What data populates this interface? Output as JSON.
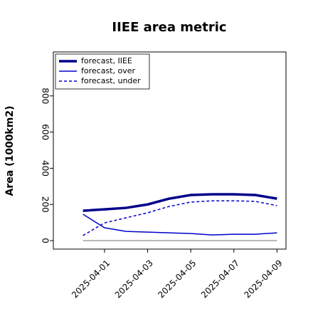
{
  "chart_data": {
    "type": "line",
    "title": "IIEE area metric",
    "y_label": "Area (1000km2)",
    "x": [
      "2025-03-31",
      "2025-04-01",
      "2025-04-02",
      "2025-04-03",
      "2025-04-04",
      "2025-04-05",
      "2025-04-06",
      "2025-04-07",
      "2025-04-08",
      "2025-04-09"
    ],
    "series": [
      {
        "name": "forecast, IIEE",
        "color": "#00008b",
        "style": "solid",
        "width": 3.5,
        "values": [
          165,
          173,
          181,
          200,
          232,
          252,
          256,
          256,
          252,
          232
        ]
      },
      {
        "name": "forecast, over",
        "color": "#0000cd",
        "style": "solid",
        "width": 1.5,
        "values": [
          146,
          71,
          51,
          47,
          43,
          39,
          31,
          35,
          35,
          43
        ]
      },
      {
        "name": "forecast, under",
        "color": "#0000cd",
        "style": "dashed",
        "width": 1.5,
        "values": [
          28,
          98,
          126,
          154,
          189,
          213,
          220,
          220,
          217,
          193
        ]
      }
    ],
    "zero_line_color": "#808080",
    "xlim": [
      "2025-03-29T15:00Z",
      "2025-04-09T10:00Z"
    ],
    "xticks": [
      "2025-04-01",
      "2025-04-03",
      "2025-04-05",
      "2025-04-07",
      "2025-04-09"
    ],
    "xtick_label_colors": [
      "#228b22",
      "#000000",
      "#000000",
      "#000000",
      "#000000"
    ],
    "ylim": [
      -47,
      1043
    ],
    "yticks": [
      0,
      200,
      400,
      600,
      800
    ],
    "legend": "upper left",
    "grid": false
  }
}
